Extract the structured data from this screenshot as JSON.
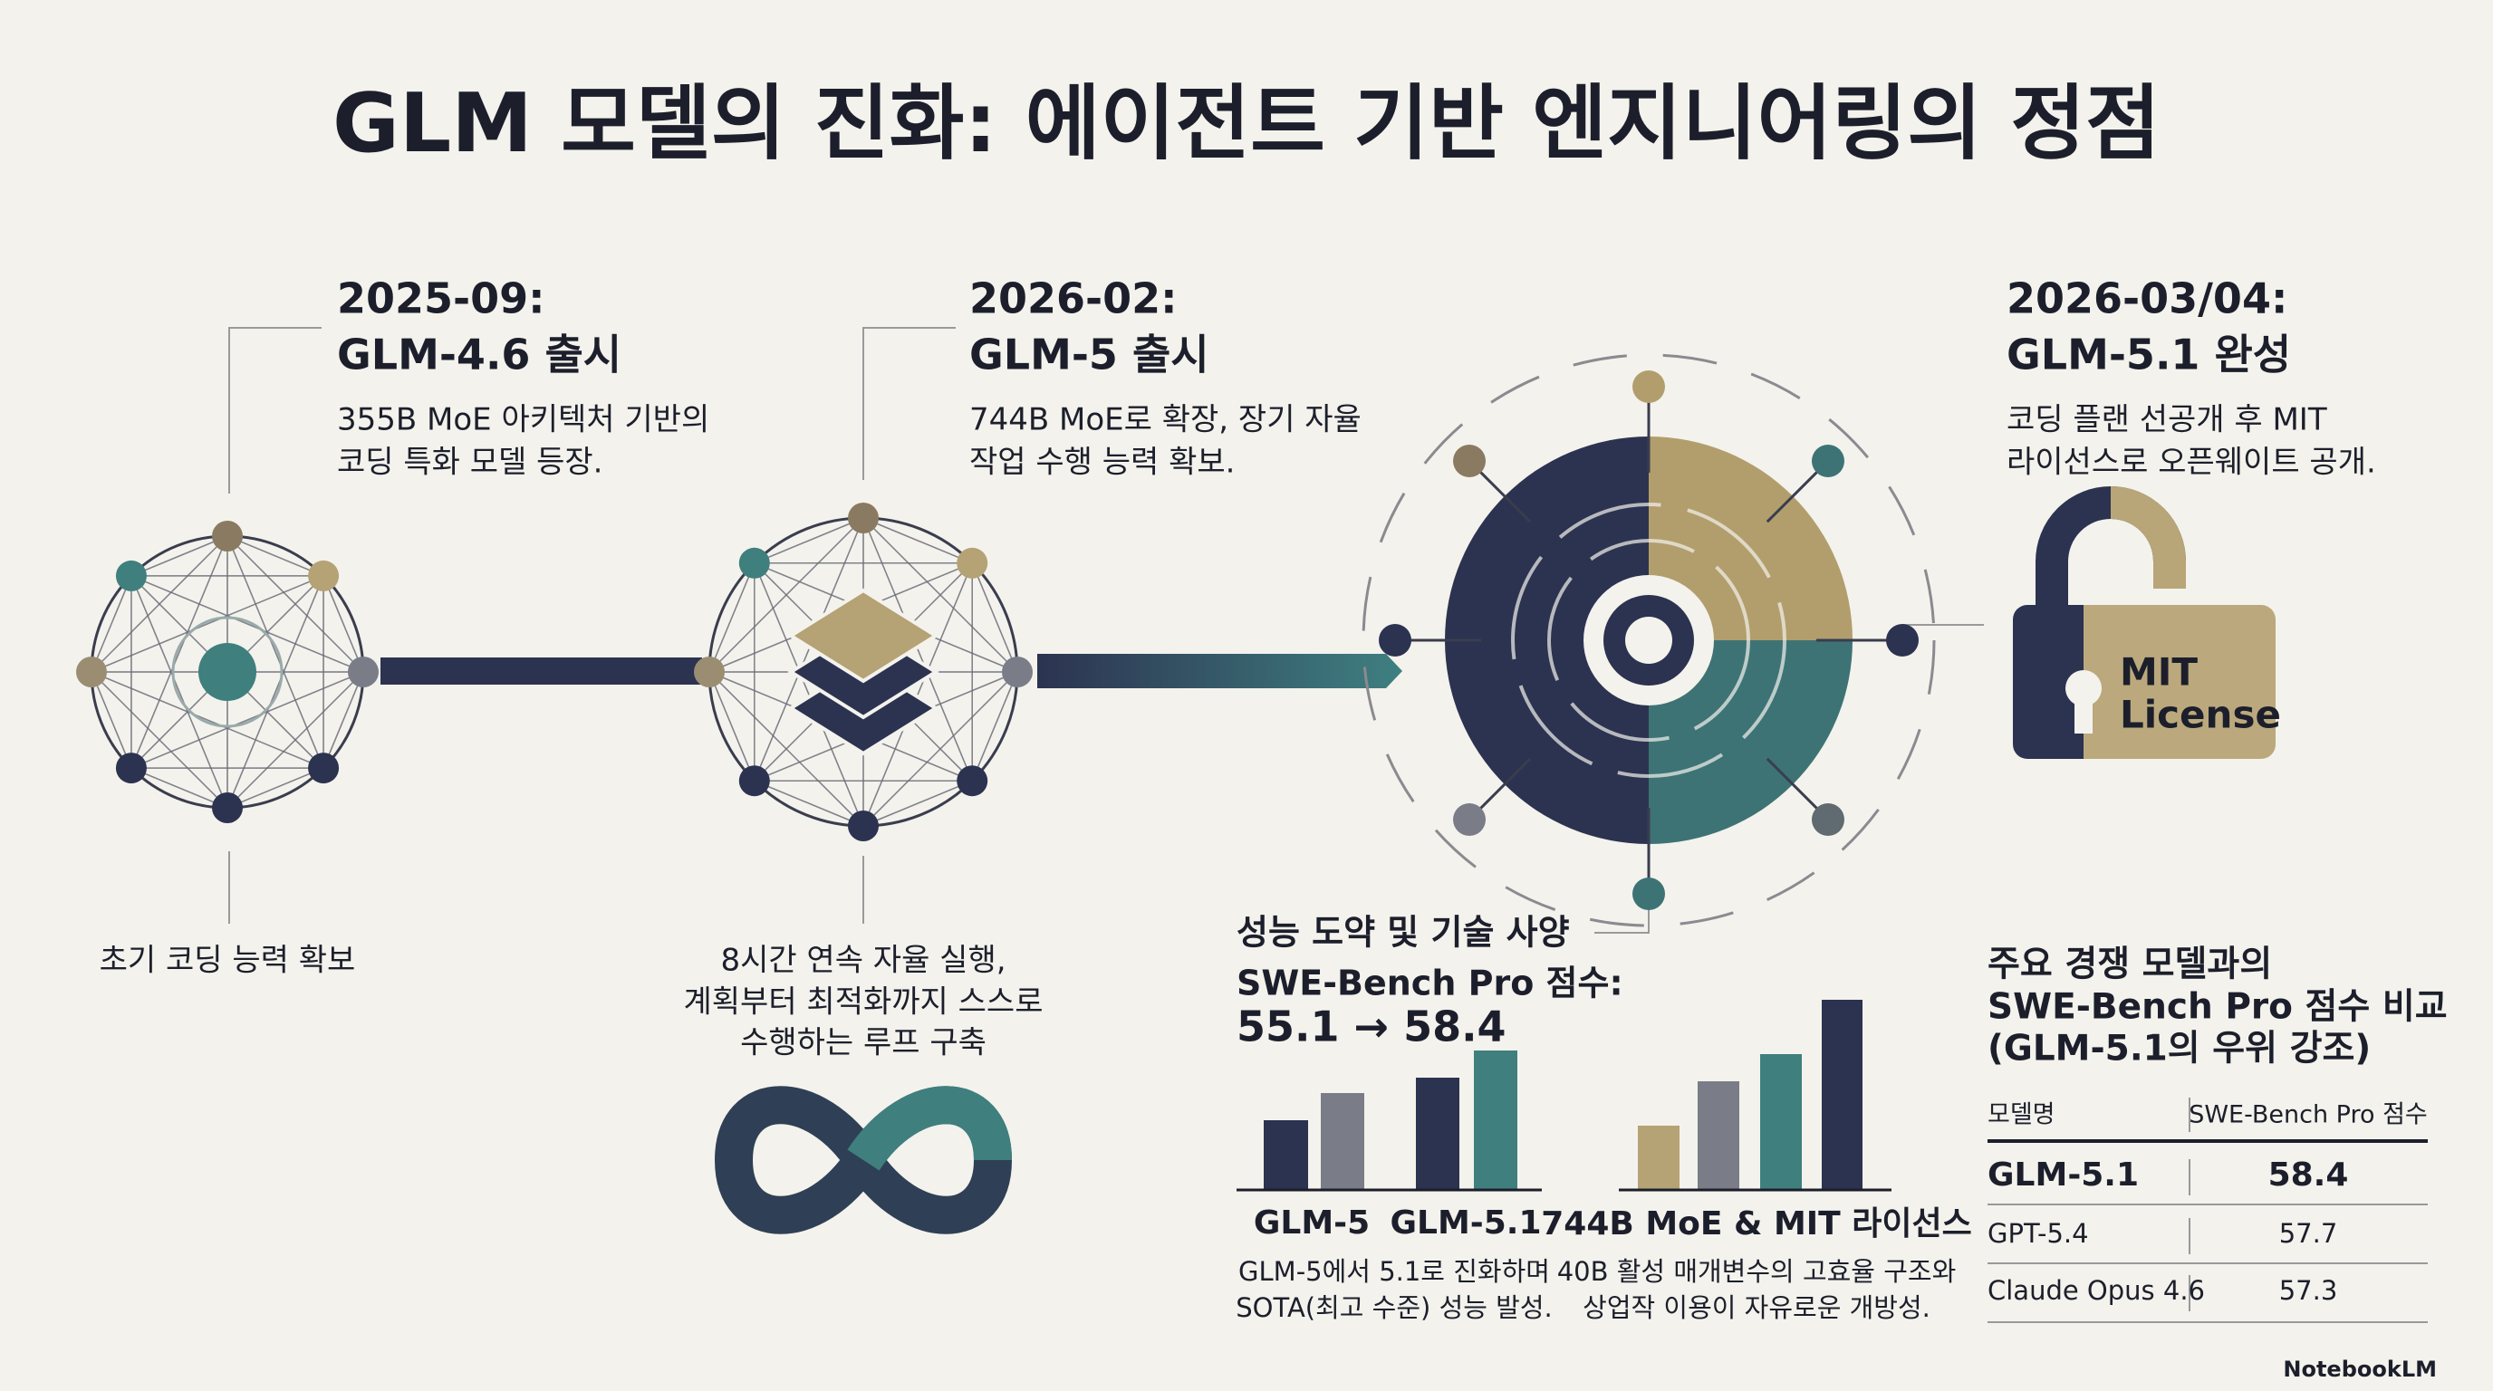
{
  "title": "GLM 모델의 진화: 에이전트 기반 엔지니어링의 정점",
  "milestones": [
    {
      "date": "2025-09:",
      "name": "GLM-4.6 출시",
      "description": [
        "355B MoE 아키텍처 기반의",
        "코딩 특화 모델 등장."
      ],
      "caption": [
        "초기 코딩 능력 확보"
      ]
    },
    {
      "date": "2026-02:",
      "name": "GLM-5 출시",
      "description": [
        "744B MoE로 확장, 장기 자율",
        "작업 수행 능력 확보."
      ],
      "caption": [
        "8시간 연속 자율 실행,",
        "계획부터 최적화까지 스스로",
        "수행하는 루프 구축"
      ]
    },
    {
      "date": "2026-03/04:",
      "name": "GLM-5.1 완성",
      "description": [
        "코딩 플랜 선공개 후 MIT",
        "라이선스로 오픈웨이트 공개."
      ]
    }
  ],
  "license_badge": [
    "MIT",
    "License"
  ],
  "performance": {
    "heading": "성능 도약 및 기술 사양",
    "metric": "SWE-Bench Pro 점수:",
    "change": "55.1 → 58.4",
    "charts": [
      {
        "labels": [
          "GLM-5",
          "GLM-5.1"
        ],
        "caption": [
          "GLM-5에서 5.1로 진화하며",
          "SOTA(최고 수준) 성능 발성."
        ]
      },
      {
        "labels": [
          "744B MoE & MIT 라이선스"
        ],
        "caption": [
          "40B 활성 매개변수의 고효율 구조와",
          "상업작 이용이 자유로운 개방성."
        ]
      }
    ]
  },
  "comparison": {
    "title": [
      "주요 경쟁 모델과의",
      "SWE-Bench Pro 점수 비교",
      "(GLM-5.1의 우위 강조)"
    ],
    "table": {
      "header": [
        "모델명",
        "SWE-Bench Pro 점수"
      ],
      "rows": [
        [
          "GLM-5.1",
          58.4
        ],
        [
          "GPT-5.4",
          57.7
        ],
        [
          "Claude Opus 4.6",
          57.3
        ]
      ]
    }
  },
  "footer": "NotebookLM"
}
